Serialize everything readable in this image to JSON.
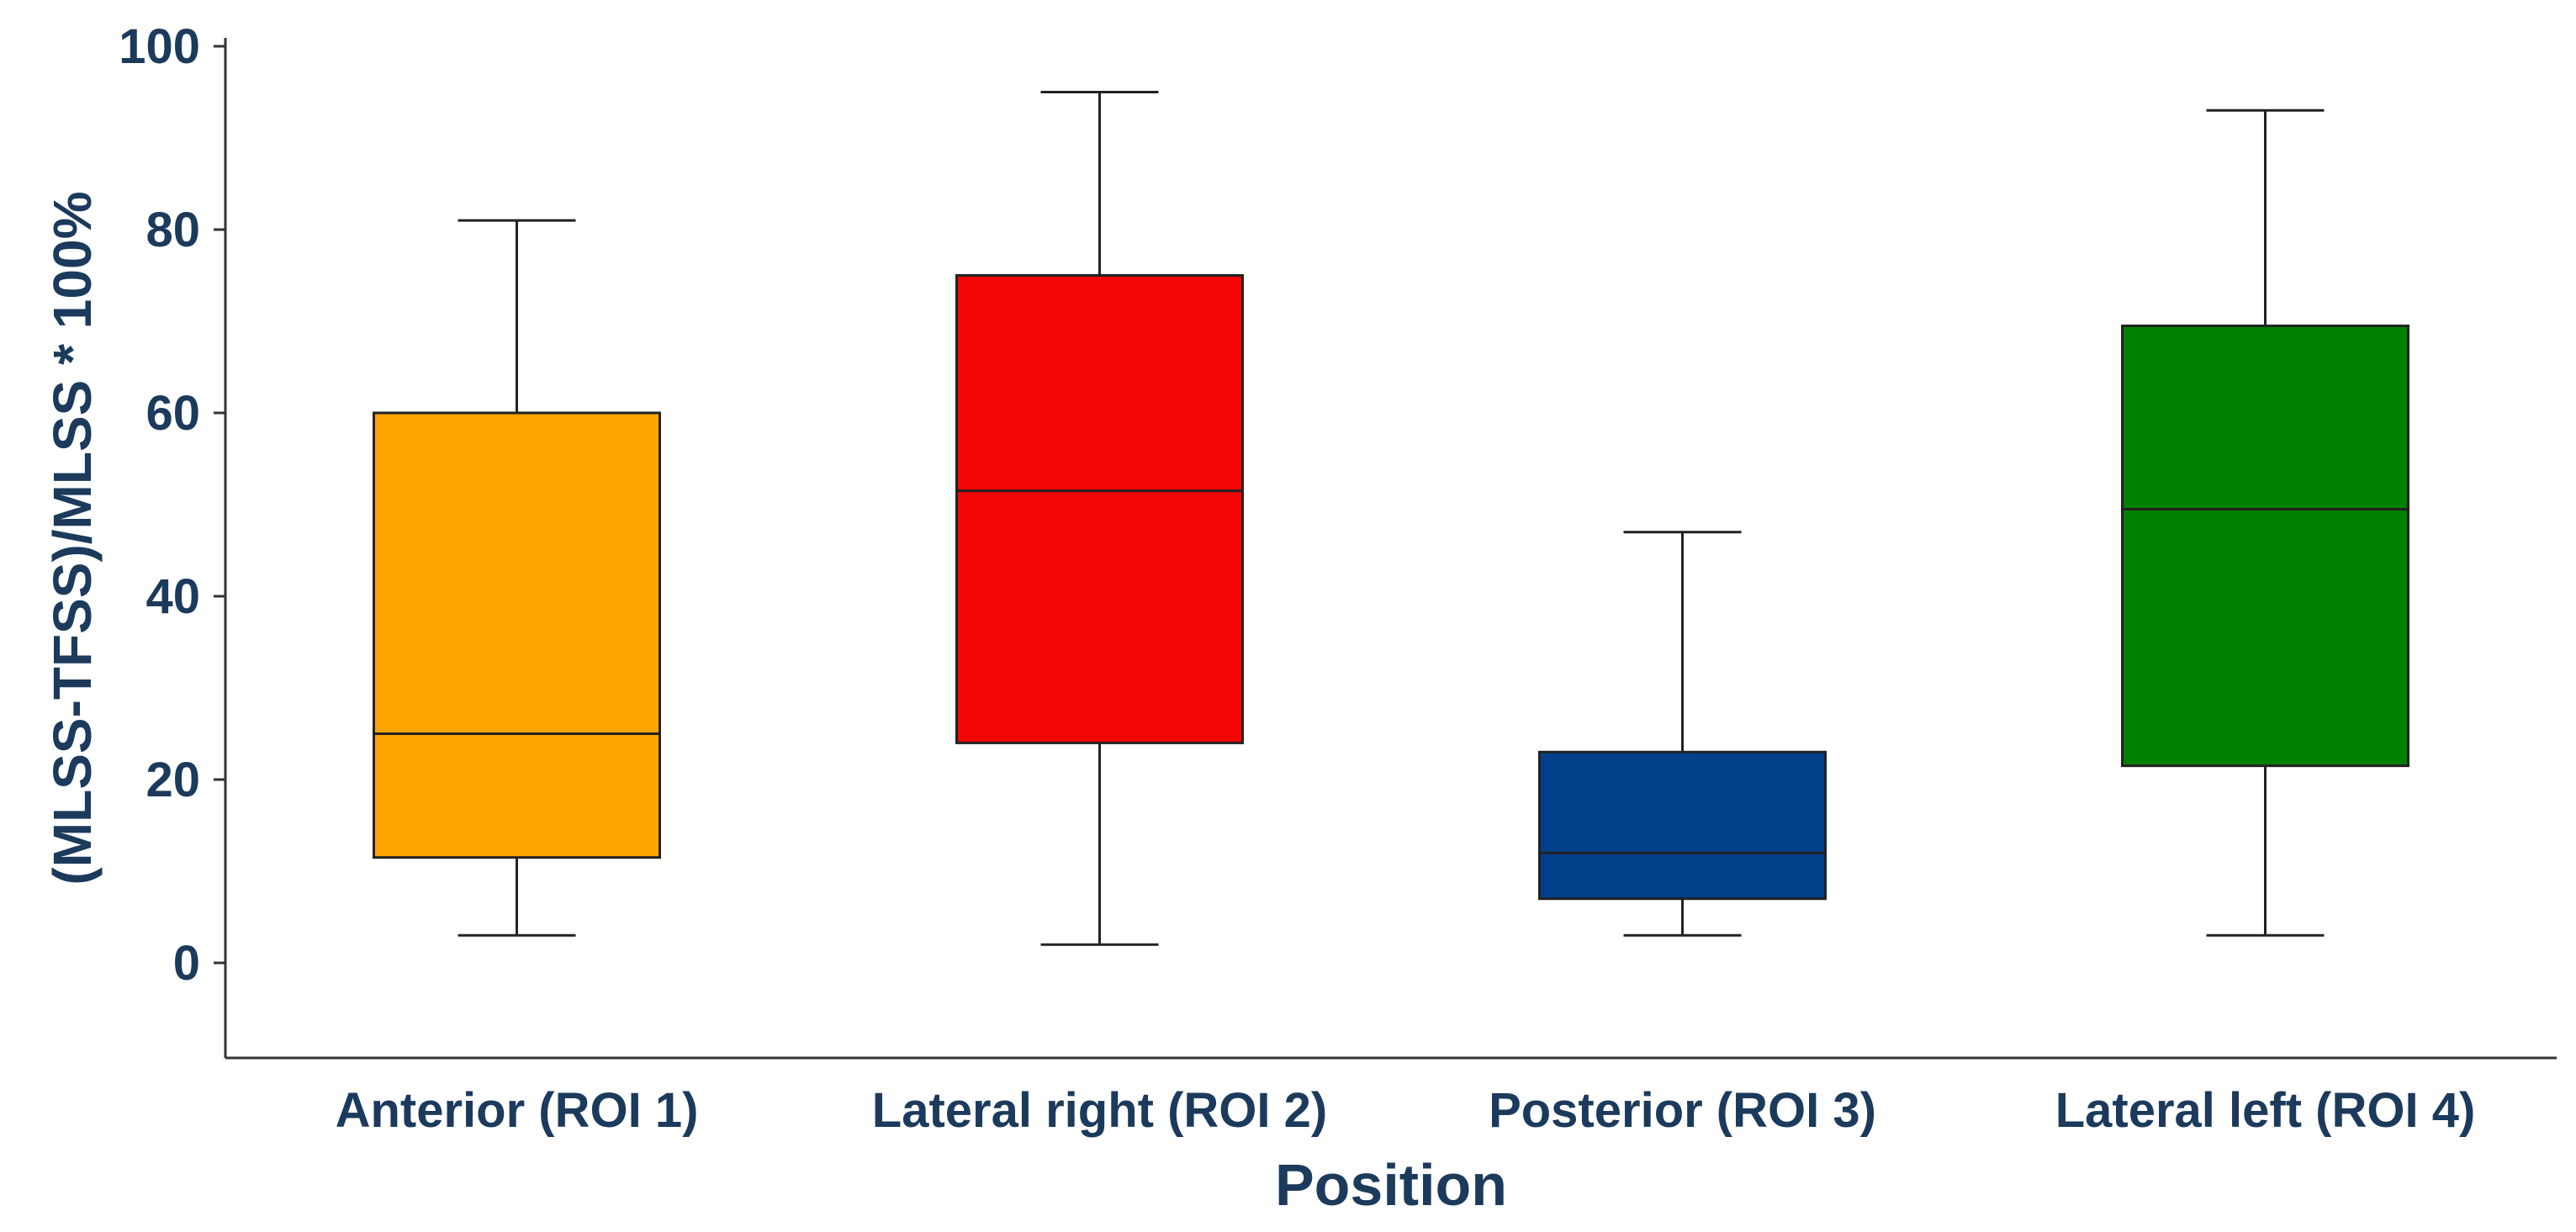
{
  "chart_data": {
    "type": "box",
    "xlabel": "Position",
    "ylabel": "(MLSS-TFSS)/MLSS * 100%",
    "ylim": [
      -10,
      100
    ],
    "yticks": [
      0,
      20,
      40,
      60,
      80,
      100
    ],
    "grid": false,
    "legend": "none",
    "categories": [
      "Anterior (ROI 1)",
      "Lateral right (ROI 2)",
      "Posterior (ROI 3)",
      "Lateral left (ROI 4)"
    ],
    "boxes": [
      {
        "category": "Anterior (ROI 1)",
        "whisker_low": 3,
        "q1": 11.5,
        "median": 25,
        "q3": 60,
        "whisker_high": 81,
        "color": "#ffa500"
      },
      {
        "category": "Lateral right (ROI 2)",
        "whisker_low": 2,
        "q1": 24,
        "median": 51.5,
        "q3": 75,
        "whisker_high": 95,
        "color": "#f50505"
      },
      {
        "category": "Posterior (ROI 3)",
        "whisker_low": 3,
        "q1": 7,
        "median": 12,
        "q3": 23,
        "whisker_high": 47,
        "color": "#003f8a"
      },
      {
        "category": "Lateral left (ROI 4)",
        "whisker_low": 3,
        "q1": 21.5,
        "median": 49.5,
        "q3": 69.5,
        "whisker_high": 93,
        "color": "#008000"
      }
    ],
    "text_color": "#1b3a5c"
  }
}
